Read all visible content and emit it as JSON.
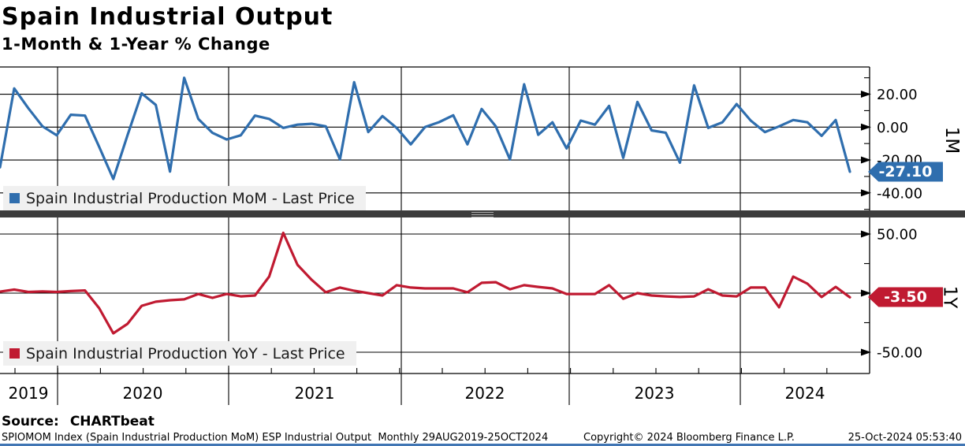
{
  "header": {
    "title": "Spain Industrial Output",
    "subtitle": "1-Month & 1-Year % Change"
  },
  "colors": {
    "mom_blue": "#2f6eae",
    "yoy_red": "#c01a31",
    "grid_black": "#000000",
    "legend_bg": "#f0f0f0",
    "splitter_gray": "#3c3c3c",
    "bottom_bar_blue": "#4176b4"
  },
  "chart_data": [
    {
      "type": "line",
      "panel": "top",
      "axis_title": "1M",
      "legend": "Spain Industrial Production MoM - Last Price",
      "legend_position": "bottom-left",
      "grid": true,
      "frequency": "monthly",
      "x_start": "Aug 2019",
      "x_end": "Aug 2024",
      "x_range_label": "29AUG2019-25OCT2024",
      "ylim": [
        -51.1,
        36.6
      ],
      "yticks": [
        20,
        0,
        -20,
        -40
      ],
      "ytick_labels": [
        "20.00",
        "0.00",
        "-20.00",
        "-40.00"
      ],
      "last_price": "-27.10",
      "series": [
        {
          "name": "Spain Industrial Production MoM - Last Price",
          "color": "#2f6eae",
          "values": [
            -24.5,
            23.5,
            11.5,
            0.5,
            -5.0,
            7.5,
            7.0,
            -12.0,
            -31.5,
            -5.0,
            20.5,
            13.5,
            -27.0,
            30.0,
            5.0,
            -3.5,
            -7.5,
            -5.0,
            7.0,
            5.0,
            -0.5,
            1.5,
            2.0,
            0.5,
            -19.7,
            27.3,
            -3.0,
            6.7,
            -0.5,
            -10.5,
            0.0,
            3.0,
            7.2,
            -10.5,
            11.0,
            0.5,
            -19.7,
            26.0,
            -4.7,
            2.9,
            -13.0,
            4.0,
            1.5,
            12.9,
            -18.7,
            15.3,
            -2.0,
            -3.4,
            -21.6,
            25.4,
            -0.5,
            2.9,
            14.0,
            4.0,
            -3.0,
            0.5,
            4.3,
            2.9,
            -5.3,
            4.3,
            -27.1
          ]
        }
      ]
    },
    {
      "type": "line",
      "panel": "bottom",
      "axis_title": "1Y",
      "legend": "Spain Industrial Production YoY - Last Price",
      "legend_position": "bottom-left",
      "grid": true,
      "frequency": "monthly",
      "x_start": "Aug 2019",
      "x_end": "Aug 2024",
      "x_range_label": "29AUG2019-25OCT2024",
      "ylim": [
        -68.0,
        63.3
      ],
      "yticks": [
        50,
        0,
        -50
      ],
      "ytick_labels": [
        "50.00",
        "0.00",
        "-50.00"
      ],
      "last_price": "-3.50",
      "series": [
        {
          "name": "Spain Industrial Production YoY - Last Price",
          "color": "#c01a31",
          "values": [
            1.3,
            3.0,
            1.0,
            1.5,
            1.0,
            1.7,
            2.3,
            -12.7,
            -34.0,
            -26.0,
            -10.7,
            -7.3,
            -6.0,
            -5.3,
            -0.7,
            -4.0,
            -0.7,
            -2.7,
            -2.0,
            14.0,
            51.0,
            24.0,
            11.3,
            0.7,
            4.7,
            2.0,
            0.0,
            -2.0,
            6.7,
            4.7,
            4.0,
            4.0,
            4.0,
            0.7,
            8.7,
            9.3,
            3.3,
            6.7,
            5.3,
            4.0,
            -0.7,
            -0.7,
            -0.7,
            6.7,
            -4.7,
            0.0,
            -2.0,
            -2.7,
            -3.3,
            -2.7,
            3.3,
            -2.0,
            -2.7,
            4.7,
            4.7,
            -12.0,
            14.0,
            8.0,
            -3.3,
            5.3,
            -3.5
          ]
        }
      ]
    }
  ],
  "x_axis": {
    "year_labels": [
      "2019",
      "2020",
      "2021",
      "2022",
      "2023",
      "2024"
    ]
  },
  "source": {
    "label": "Source:",
    "value": "CHARTbeat"
  },
  "footer": {
    "left": "SPIOMOM Index (Spain Industrial Production MoM) ESP Industrial Output  Monthly 29AUG2019-25OCT2024",
    "center": "Copyright© 2024 Bloomberg Finance L.P.",
    "right": "25-Oct-2024 05:53:40"
  }
}
